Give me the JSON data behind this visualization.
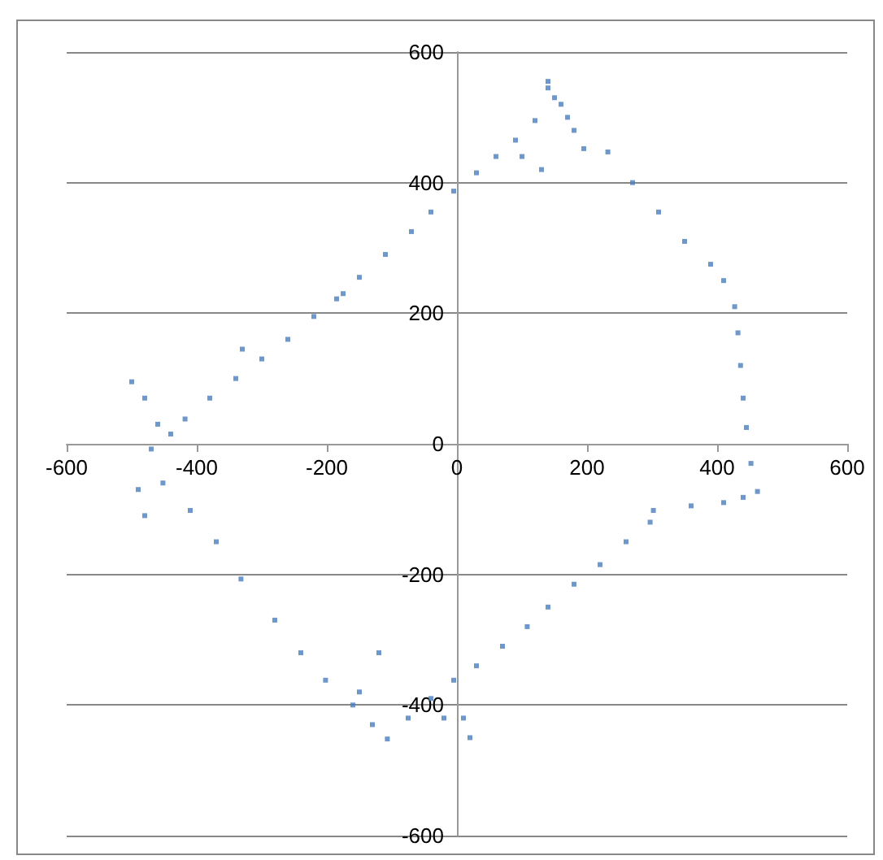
{
  "chart_data": {
    "type": "scatter",
    "marker": "square",
    "grid": "y",
    "xlim": [
      -600,
      600
    ],
    "ylim": [
      -600,
      600
    ],
    "xticks": [
      -600,
      -400,
      -200,
      0,
      200,
      400,
      600
    ],
    "yticks": [
      -600,
      -400,
      -200,
      0,
      200,
      400,
      600
    ],
    "series": [
      {
        "color": "#4a7ebb",
        "x": [
          -418,
          -380,
          -340,
          -300,
          -260,
          -220,
          -185,
          -150,
          -110,
          -70,
          -40,
          -5,
          30,
          60,
          90,
          120,
          150,
          140,
          160,
          170,
          180,
          195,
          232,
          270,
          310,
          350,
          390,
          410,
          427,
          432,
          436,
          440,
          445,
          452,
          462,
          440,
          410,
          360,
          302,
          297,
          260,
          220,
          180,
          140,
          108,
          70,
          30,
          -5,
          -40,
          -75,
          -107,
          -130,
          -160,
          -202,
          -240,
          -280,
          -332,
          -370,
          -410,
          -452,
          -470,
          -460,
          -440,
          -500,
          -480,
          -490,
          -480,
          -120,
          -20,
          10,
          20,
          -150,
          130,
          140,
          100,
          -330,
          -175
        ],
        "values": [
          38,
          70,
          100,
          130,
          160,
          195,
          222,
          255,
          290,
          325,
          355,
          387,
          415,
          440,
          465,
          495,
          530,
          545,
          520,
          500,
          480,
          452,
          447,
          400,
          355,
          310,
          275,
          250,
          210,
          170,
          120,
          70,
          25,
          -30,
          -73,
          -82,
          -90,
          -95,
          -102,
          -120,
          -150,
          -185,
          -215,
          -250,
          -280,
          -310,
          -340,
          -362,
          -390,
          -420,
          -452,
          -430,
          -400,
          -362,
          -320,
          -270,
          -207,
          -150,
          -102,
          -60,
          -8,
          30,
          15,
          95,
          70,
          -70,
          -110,
          -320,
          -420,
          -420,
          -450,
          -380,
          420,
          555,
          440,
          145,
          230
        ]
      }
    ]
  }
}
